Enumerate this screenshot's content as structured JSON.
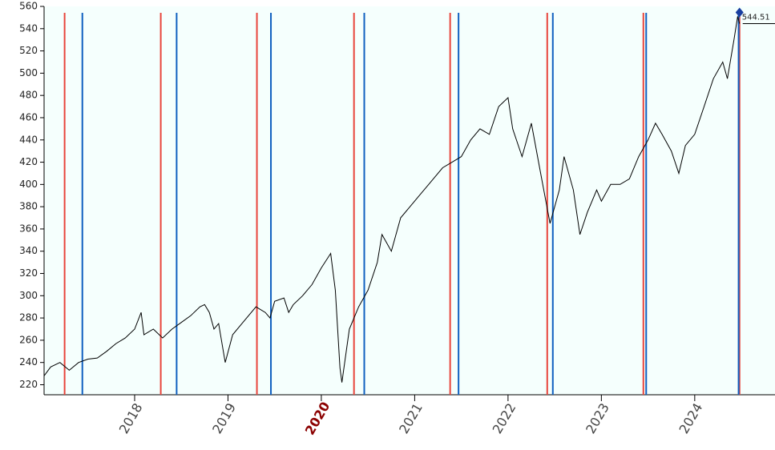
{
  "chart_data": {
    "type": "line",
    "x": [
      2017.03,
      2017.1,
      2017.2,
      2017.3,
      2017.4,
      2017.5,
      2017.6,
      2017.7,
      2017.8,
      2017.9,
      2018.0,
      2018.07,
      2018.1,
      2018.2,
      2018.3,
      2018.4,
      2018.5,
      2018.6,
      2018.7,
      2018.75,
      2018.8,
      2018.85,
      2018.9,
      2018.97,
      2019.05,
      2019.15,
      2019.3,
      2019.4,
      2019.45,
      2019.5,
      2019.6,
      2019.65,
      2019.7,
      2019.8,
      2019.9,
      2020.0,
      2020.1,
      2020.15,
      2020.2,
      2020.22,
      2020.3,
      2020.4,
      2020.5,
      2020.6,
      2020.65,
      2020.75,
      2020.85,
      2020.95,
      2021.05,
      2021.15,
      2021.3,
      2021.4,
      2021.5,
      2021.6,
      2021.7,
      2021.8,
      2021.9,
      2022.0,
      2022.05,
      2022.15,
      2022.25,
      2022.35,
      2022.45,
      2022.55,
      2022.6,
      2022.7,
      2022.77,
      2022.85,
      2022.95,
      2023.0,
      2023.1,
      2023.2,
      2023.3,
      2023.4,
      2023.5,
      2023.58,
      2023.65,
      2023.75,
      2023.83,
      2023.9,
      2024.0,
      2024.1,
      2024.2,
      2024.3,
      2024.35,
      2024.42,
      2024.46,
      2024.48
    ],
    "series": [
      {
        "color": "#000000",
        "values": [
          228,
          236,
          240,
          233,
          240,
          243,
          244,
          250,
          257,
          262,
          270,
          285,
          265,
          270,
          262,
          270,
          276,
          282,
          290,
          292,
          285,
          270,
          275,
          240,
          265,
          275,
          290,
          285,
          280,
          295,
          298,
          285,
          292,
          300,
          310,
          325,
          338,
          305,
          235,
          222,
          270,
          290,
          305,
          330,
          355,
          340,
          370,
          380,
          390,
          400,
          415,
          420,
          425,
          440,
          450,
          445,
          470,
          478,
          450,
          425,
          455,
          410,
          365,
          395,
          425,
          395,
          355,
          375,
          395,
          385,
          400,
          400,
          405,
          425,
          440,
          455,
          445,
          430,
          410,
          435,
          445,
          470,
          495,
          510,
          495,
          530,
          551,
          544.51
        ]
      }
    ],
    "red_lines": [
      2017.25,
      2018.28,
      2019.31,
      2020.35,
      2021.38,
      2022.42,
      2023.45,
      2024.48
    ],
    "blue_lines": [
      2017.44,
      2018.45,
      2019.46,
      2020.46,
      2021.47,
      2022.48,
      2023.48,
      2024.47
    ],
    "last_price": {
      "value": 544.51,
      "label": "544.51"
    },
    "xlim": [
      2017.03,
      2024.86
    ],
    "ylim": [
      211,
      560
    ],
    "xticks": [
      2018,
      2019,
      2020,
      2021,
      2022,
      2023,
      2024
    ],
    "highlight_tick": 2020,
    "yticks": [
      220,
      240,
      260,
      280,
      300,
      320,
      340,
      360,
      380,
      400,
      420,
      440,
      460,
      480,
      500,
      520,
      540,
      560
    ],
    "background": "#f5fffd"
  }
}
